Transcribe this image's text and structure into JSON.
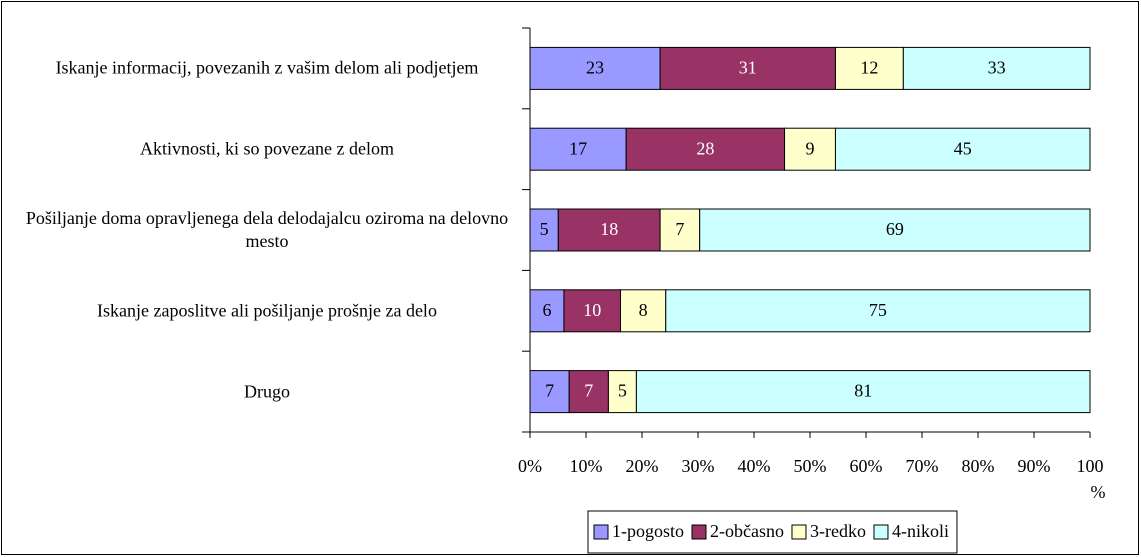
{
  "chart_data": {
    "type": "bar",
    "orientation": "horizontal",
    "stacking": "percent",
    "categories": [
      "Iskanje informacij, povezanih z vašim delom ali podjetjem",
      "Aktivnosti, ki so povezane z delom",
      "Pošiljanje doma opravljenega dela delodajalcu oziroma na delovno mesto",
      "Iskanje zaposlitve ali pošiljanje prošnje za delo",
      "Drugo"
    ],
    "series": [
      {
        "name": "1-pogosto",
        "color": "#9999ff",
        "values": [
          23,
          17,
          5,
          6,
          7
        ]
      },
      {
        "name": "2-občasno",
        "color": "#993366",
        "values": [
          31,
          28,
          18,
          10,
          7
        ]
      },
      {
        "name": "3-redko",
        "color": "#ffffcc",
        "values": [
          12,
          9,
          7,
          8,
          5
        ]
      },
      {
        "name": "4-nikoli",
        "color": "#ccffff",
        "values": [
          33,
          45,
          69,
          75,
          81
        ]
      }
    ],
    "xlim": [
      0,
      100
    ],
    "xticks": [
      {
        "value": 0,
        "label": "0%"
      },
      {
        "value": 10,
        "label": "10%"
      },
      {
        "value": 20,
        "label": "20%"
      },
      {
        "value": 30,
        "label": "30%"
      },
      {
        "value": 40,
        "label": "40%"
      },
      {
        "value": 50,
        "label": "50%"
      },
      {
        "value": 60,
        "label": "60%"
      },
      {
        "value": 70,
        "label": "70%"
      },
      {
        "value": 80,
        "label": "80%"
      },
      {
        "value": 90,
        "label": "90%"
      },
      {
        "value": 100,
        "label": "100 %"
      }
    ],
    "legend": "bottom-right",
    "grid": false
  }
}
